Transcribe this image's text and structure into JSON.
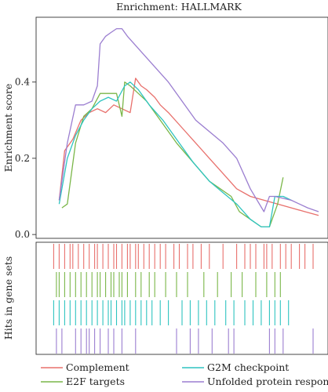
{
  "chart_data": {
    "type": "line",
    "title": "Enrichment: HALLMARK",
    "xlabel": "",
    "ylabel": "Enrichment score",
    "hits_label": "Hits in gene sets",
    "xlim": [
      0,
      100
    ],
    "ylim": [
      -0.01,
      0.57
    ],
    "yticks": [
      0.0,
      0.2,
      0.4
    ],
    "ytick_labels": [
      "0.0",
      "0.2",
      "0.4"
    ],
    "grid": false,
    "legend_position": "bottom",
    "series": [
      {
        "name": "Complement",
        "color": "#e8706c",
        "x": [
          5,
          7,
          10,
          13,
          16,
          19,
          22,
          25,
          28,
          31,
          33,
          35,
          37,
          40,
          42,
          45,
          50,
          55,
          60,
          65,
          70,
          75,
          80,
          85,
          90,
          95,
          100
        ],
        "y": [
          0.09,
          0.22,
          0.25,
          0.3,
          0.32,
          0.33,
          0.32,
          0.34,
          0.33,
          0.32,
          0.41,
          0.39,
          0.38,
          0.36,
          0.34,
          0.32,
          0.28,
          0.24,
          0.2,
          0.16,
          0.12,
          0.1,
          0.09,
          0.08,
          0.07,
          0.06,
          0.05
        ]
      },
      {
        "name": "E2F targets",
        "color": "#7ab648",
        "x": [
          6,
          8,
          11,
          14,
          17,
          20,
          23,
          26,
          28,
          29,
          31,
          34,
          37,
          42,
          48,
          54,
          60,
          64,
          68,
          71,
          75,
          79,
          82,
          85,
          87
        ],
        "y": [
          0.07,
          0.08,
          0.24,
          0.31,
          0.33,
          0.37,
          0.37,
          0.37,
          0.31,
          0.4,
          0.39,
          0.37,
          0.35,
          0.3,
          0.24,
          0.19,
          0.14,
          0.12,
          0.1,
          0.06,
          0.04,
          0.02,
          0.02,
          0.08,
          0.15
        ]
      },
      {
        "name": "G2M checkpoint",
        "color": "#2ec4c0",
        "x": [
          5,
          8,
          11,
          14,
          17,
          20,
          23,
          26,
          29,
          31,
          34,
          38,
          43,
          48,
          54,
          60,
          65,
          70,
          75,
          79,
          82,
          84,
          87,
          90
        ],
        "y": [
          0.08,
          0.2,
          0.26,
          0.3,
          0.33,
          0.35,
          0.36,
          0.35,
          0.39,
          0.4,
          0.38,
          0.34,
          0.3,
          0.25,
          0.19,
          0.14,
          0.11,
          0.08,
          0.04,
          0.02,
          0.02,
          0.1,
          0.1,
          0.09
        ]
      },
      {
        "name": "Unfolded protein response",
        "color": "#9b7ed0",
        "x": [
          5,
          8,
          11,
          14,
          17,
          19,
          20,
          22,
          24,
          26,
          28,
          30,
          35,
          45,
          55,
          65,
          70,
          75,
          80,
          82,
          84,
          90,
          96,
          100
        ],
        "y": [
          0.09,
          0.24,
          0.34,
          0.34,
          0.35,
          0.39,
          0.5,
          0.52,
          0.53,
          0.54,
          0.54,
          0.52,
          0.48,
          0.4,
          0.3,
          0.24,
          0.2,
          0.12,
          0.06,
          0.1,
          0.1,
          0.09,
          0.07,
          0.06
        ]
      }
    ],
    "hits": [
      {
        "name": "Complement",
        "color": "#e8706c",
        "x": [
          3,
          5,
          7,
          9,
          10,
          12,
          14,
          16,
          18,
          19,
          21,
          23,
          25,
          26,
          28,
          30,
          31,
          33,
          34,
          36,
          38,
          40,
          42,
          44,
          47,
          49,
          52,
          54,
          57,
          60,
          65,
          70,
          73,
          75,
          77,
          80,
          81,
          83,
          86,
          88,
          90,
          93,
          95,
          98
        ]
      },
      {
        "name": "E2F targets",
        "color": "#7ab648",
        "x": [
          4,
          5,
          7,
          9,
          11,
          13,
          15,
          17,
          19,
          20,
          22,
          24,
          25,
          27,
          28,
          30,
          33,
          35,
          38,
          40,
          44,
          48,
          52,
          58,
          63,
          68,
          72,
          77,
          81,
          84,
          86
        ]
      },
      {
        "name": "G2M checkpoint",
        "color": "#2ec4c0",
        "x": [
          3,
          5,
          7,
          9,
          11,
          13,
          15,
          17,
          19,
          21,
          23,
          24,
          26,
          28,
          29,
          31,
          33,
          35,
          37,
          39,
          42,
          45,
          50,
          53,
          56,
          59,
          62,
          66,
          69,
          73,
          76,
          79,
          82,
          84,
          86,
          89
        ]
      },
      {
        "name": "Unfolded protein response",
        "color": "#9b7ed0",
        "x": [
          4,
          6,
          11,
          13,
          15,
          16,
          18,
          20,
          23,
          25,
          28,
          33,
          48,
          53,
          56,
          61,
          67,
          69,
          82,
          84,
          87,
          98
        ]
      }
    ]
  }
}
